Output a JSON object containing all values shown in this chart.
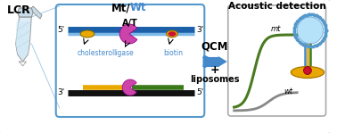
{
  "title_lcr": "LCR",
  "title_mt": "Mt/",
  "title_wt": "Wt",
  "title_acoustic": "Acoustic detection",
  "qcm_label": "QCM",
  "plus_label": "+",
  "liposomes_label": "liposomes",
  "mt_label": "mt",
  "wt_label": "wt",
  "at_label": "A/T",
  "cholesterol_label": "cholesterol",
  "ligase_label": "ligase",
  "biotin_label": "biotin",
  "top_strand_color": "#1a5fa8",
  "top_strand_light_color": "#7ab8e8",
  "bottom_strand_color": "#111111",
  "yellow_color": "#e8a800",
  "green_color": "#3a7a1a",
  "mt_curve_color": "#4a7a20",
  "wt_curve_color": "#888888",
  "arrow_blue": "#4488cc",
  "label_blue": "#4488cc",
  "cholesterol_color": "#e8a800",
  "ligase_color": "#cc44aa",
  "biotin_color": "#cc1133",
  "liposome_ring_color": "#5599cc",
  "liposome_fill_color": "#aaddf8",
  "gold_color": "#e8a800",
  "red_bead_color": "#cc1133",
  "inner_box_color": "#5599cc",
  "outer_box_color": "#aaaaaa",
  "qcm_arrow_color": "#4488cc"
}
